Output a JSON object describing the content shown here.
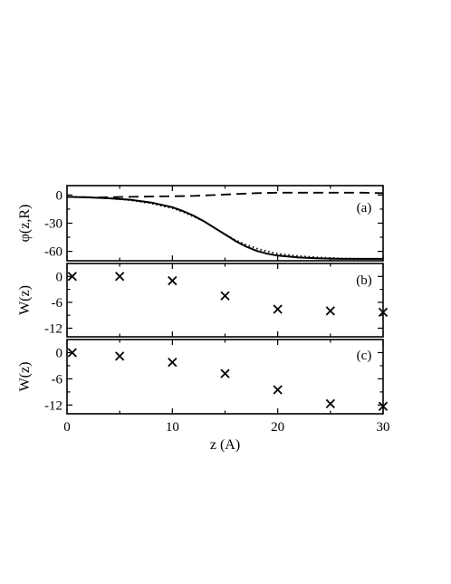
{
  "chart_data": [
    {
      "type": "line",
      "panel_label": "(a)",
      "ylabel": "φ(z,R)",
      "xlim": [
        0,
        30
      ],
      "ylim": [
        -70,
        10
      ],
      "yticks": [
        0,
        -30,
        -60
      ],
      "series": [
        {
          "style": "solid",
          "x": [
            0,
            2,
            4,
            6,
            8,
            10,
            11,
            12,
            13,
            14,
            15,
            16,
            17,
            18,
            19,
            20,
            22,
            24,
            26,
            28,
            30
          ],
          "y": [
            -2,
            -2.5,
            -3.5,
            -5,
            -8,
            -13,
            -17,
            -22,
            -28,
            -35,
            -42,
            -49,
            -55,
            -59.5,
            -62.5,
            -64.5,
            -66.5,
            -67.5,
            -68,
            -68,
            -68
          ]
        },
        {
          "style": "dotted",
          "x": [
            0,
            2,
            4,
            6,
            8,
            10,
            11,
            12,
            13,
            14,
            15,
            16,
            17,
            18,
            19,
            20,
            22,
            24,
            26,
            28,
            30
          ],
          "y": [
            -2,
            -2.5,
            -3.5,
            -5.5,
            -9,
            -14,
            -18,
            -23,
            -28,
            -35,
            -42,
            -48,
            -53,
            -57,
            -60,
            -62.5,
            -65,
            -66.5,
            -67.5,
            -68,
            -68
          ]
        },
        {
          "style": "dashed",
          "x": [
            0,
            3,
            6,
            9,
            12,
            14,
            16,
            18,
            20,
            22,
            24,
            26,
            28,
            30
          ],
          "y": [
            -2,
            -2.5,
            -2,
            -1.5,
            -1,
            0,
            1,
            2,
            2.5,
            2.5,
            2.5,
            2.5,
            2.5,
            2
          ]
        }
      ]
    },
    {
      "type": "scatter",
      "panel_label": "(b)",
      "ylabel": "W(z)",
      "xlim": [
        0,
        30
      ],
      "ylim": [
        -14,
        3
      ],
      "yticks": [
        0,
        -6,
        -12
      ],
      "marker": "x",
      "x": [
        0.5,
        5,
        10,
        15,
        20,
        25,
        30
      ],
      "y": [
        0,
        0,
        -1,
        -4.5,
        -7.6,
        -8,
        -8.3
      ]
    },
    {
      "type": "scatter",
      "panel_label": "(c)",
      "ylabel": "W(z)",
      "xlim": [
        0,
        30
      ],
      "ylim": [
        -14,
        3
      ],
      "yticks": [
        0,
        -6,
        -12
      ],
      "xticks": [
        0,
        10,
        20,
        30
      ],
      "xlabel": "z (A)",
      "marker": "x",
      "x": [
        0.5,
        5,
        10,
        15,
        20,
        25,
        30
      ],
      "y": [
        0,
        -0.8,
        -2.2,
        -4.8,
        -8.5,
        -11.7,
        -12.3
      ]
    }
  ]
}
